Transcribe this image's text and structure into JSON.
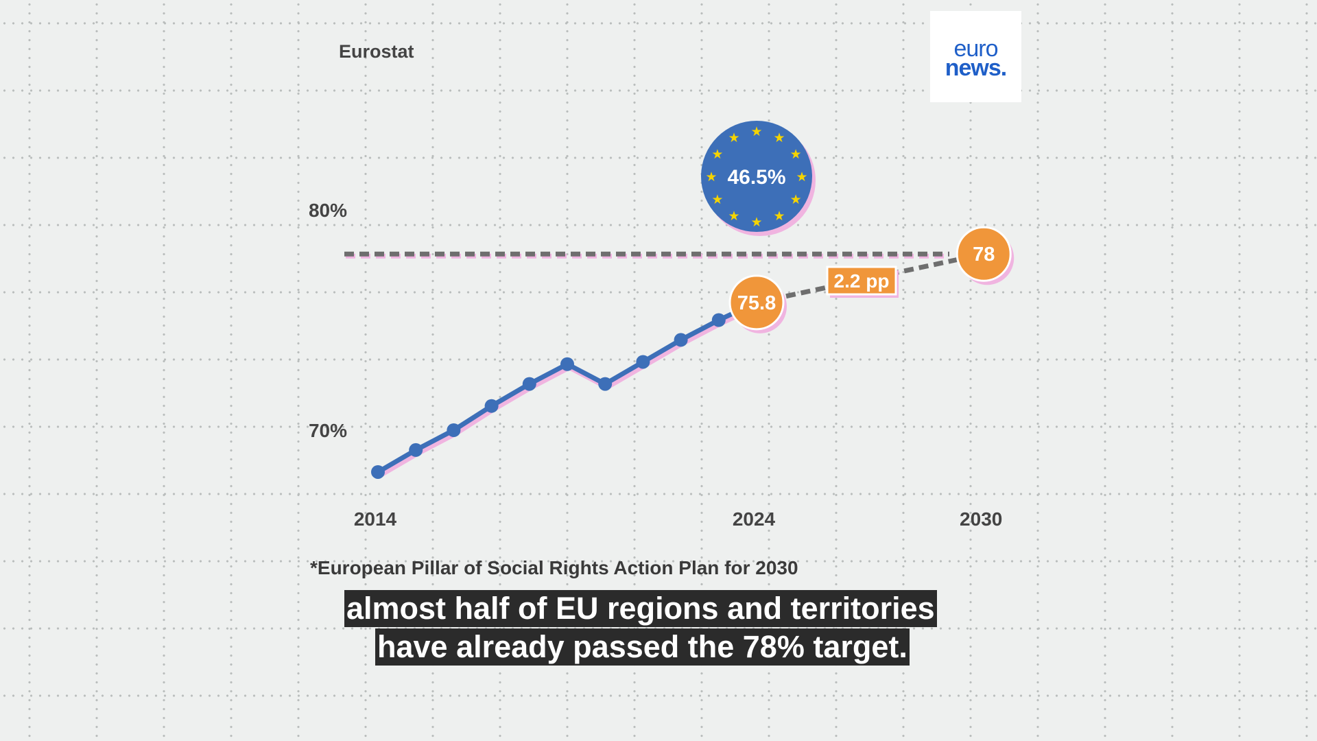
{
  "source": "Eurostat",
  "logo": {
    "line1": "euro",
    "line2": "news."
  },
  "footnote": "*European Pillar of Social Rights Action Plan for 2030",
  "subtitle": {
    "line1": "almost half of EU regions and territories",
    "line2": "have already passed the 78% target."
  },
  "colors": {
    "line": "#3d6fb8",
    "shadow": "#f0b4e0",
    "highlight": "#f0963a",
    "target": "#6e6e6e",
    "eu_blue": "#3d6fb8",
    "eu_star": "#f5d400"
  },
  "chart_data": {
    "type": "line",
    "title": "",
    "xlabel": "",
    "ylabel": "",
    "ylim": [
      67,
      82
    ],
    "xlim": [
      2014,
      2030
    ],
    "grid": true,
    "yticks": [
      {
        "value": 70,
        "label": "70%"
      },
      {
        "value": 80,
        "label": "80%"
      }
    ],
    "xticks": [
      {
        "value": 2014,
        "label": "2014"
      },
      {
        "value": 2024,
        "label": "2024"
      },
      {
        "value": 2030,
        "label": "2030"
      }
    ],
    "x": [
      2014,
      2015,
      2016,
      2017,
      2018,
      2019,
      2020,
      2021,
      2022,
      2023,
      2024
    ],
    "values": [
      68.1,
      69.1,
      70.0,
      71.1,
      72.1,
      73.0,
      72.1,
      73.1,
      74.1,
      75.0,
      75.8
    ],
    "target": {
      "year": 2030,
      "value": 78,
      "label": "78"
    },
    "last_label": "75.8",
    "gap_label": "2.2 pp",
    "eu_badge": "46.5%"
  }
}
